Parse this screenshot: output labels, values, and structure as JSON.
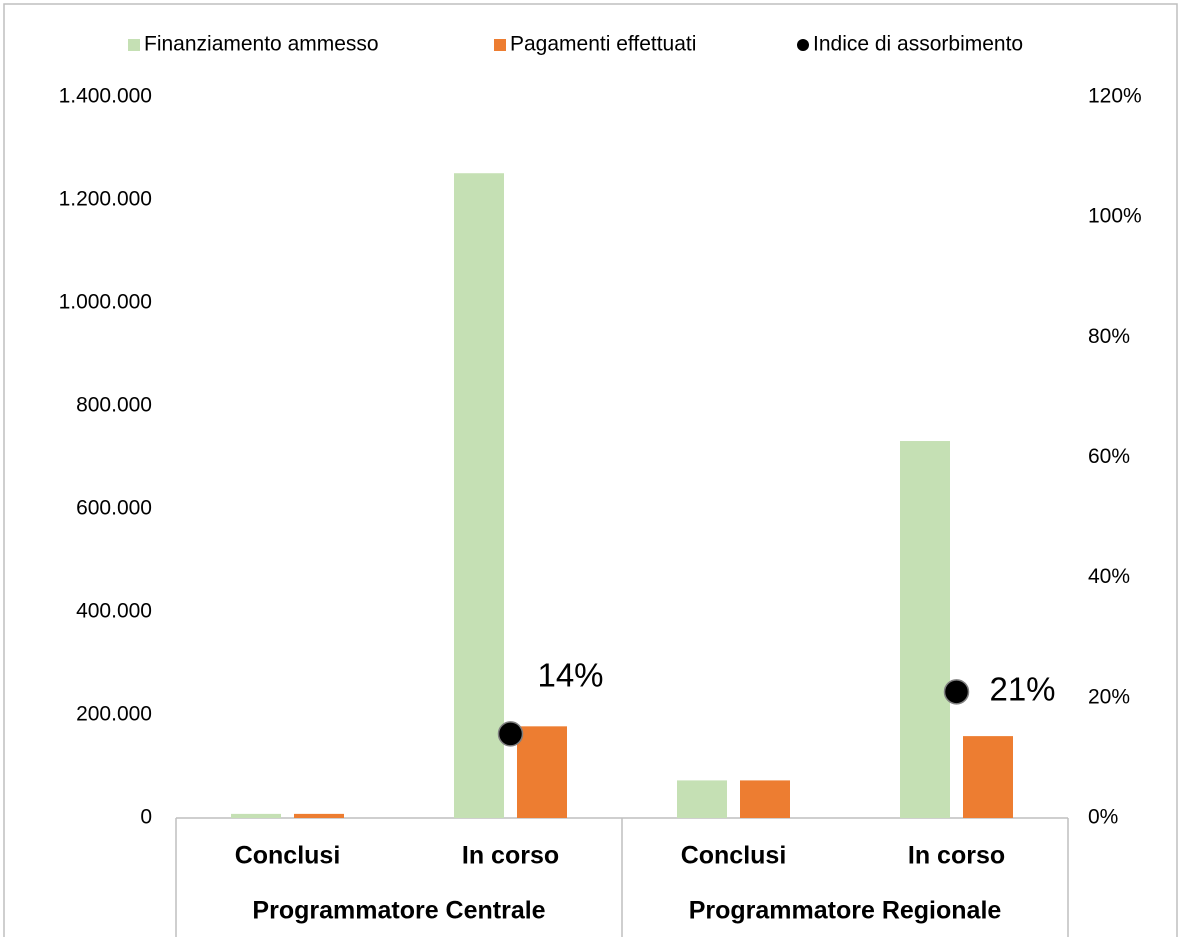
{
  "chart_data": {
    "type": "bar",
    "groups": [
      {
        "name": "Programmatore Centrale",
        "categories": [
          "Conclusi",
          "In corso"
        ]
      },
      {
        "name": "Programmatore Regionale",
        "categories": [
          "Conclusi",
          "In corso"
        ]
      }
    ],
    "series": [
      {
        "name": "Finanziamento ammesso",
        "type": "bar",
        "color": "#c5e0b4",
        "values": [
          8000,
          1252000,
          73000,
          732000
        ]
      },
      {
        "name": "Pagamenti effettuati",
        "type": "bar",
        "color": "#ed7d31",
        "values": [
          8000,
          178000,
          73000,
          159000
        ]
      },
      {
        "name": "Indice di assorbimento",
        "type": "scatter",
        "axis": "y2",
        "color": "#000000",
        "values": [
          null,
          14,
          null,
          21
        ],
        "value_labels": [
          null,
          "14%",
          null,
          "21%"
        ]
      }
    ],
    "ylim": [
      0,
      1400000
    ],
    "yticks": [
      0,
      {
        "value": 200000,
        "label": "200.000"
      },
      {
        "value": 400000,
        "label": "400.000"
      },
      {
        "value": 600000,
        "label": "600.000"
      },
      {
        "value": 800000,
        "label": "800.000"
      },
      {
        "value": 1000000,
        "label": "1.000.000"
      },
      {
        "value": 1200000,
        "label": "1.200.000"
      },
      {
        "value": 1400000,
        "label": "1.400.000"
      }
    ],
    "y2lim": [
      0,
      120
    ],
    "y2ticks": [
      {
        "value": 0,
        "label": "0%"
      },
      {
        "value": 20,
        "label": "20%"
      },
      {
        "value": 40,
        "label": "40%"
      },
      {
        "value": 60,
        "label": "60%"
      },
      {
        "value": 80,
        "label": "80%"
      },
      {
        "value": 100,
        "label": "100%"
      },
      {
        "value": 120,
        "label": "120%"
      }
    ],
    "grid": false,
    "legend": "top"
  }
}
